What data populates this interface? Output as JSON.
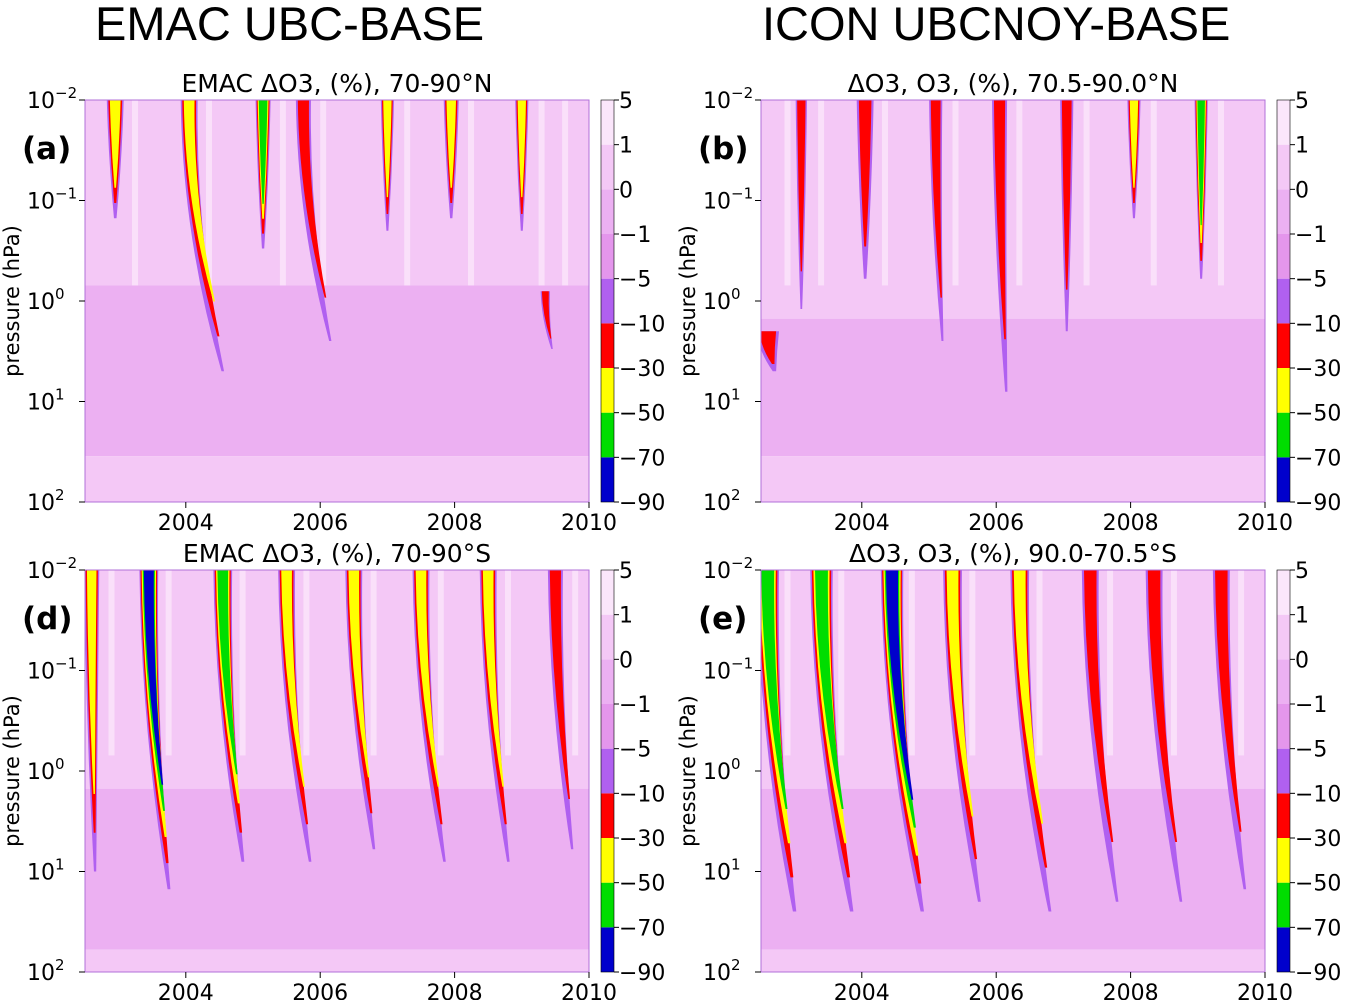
{
  "header": {
    "left_title": "EMAC UBC-BASE",
    "right_title": "ICON UBCNOY-BASE"
  },
  "colors": {
    "levels": [
      "#0000cc",
      "#00dd00",
      "#ffff00",
      "#ff0000",
      "#b060f0",
      "#e496ec",
      "#ecb0f2",
      "#f4c8f6",
      "#fbe6fb"
    ],
    "axis": "#000000",
    "plot_frame": "#b070d8"
  },
  "chart_data": [
    {
      "type": "heatmap",
      "panel_label": "(a)",
      "title": "EMAC ΔO3, (%), 70-90°N",
      "xlabel": "",
      "ylabel": "pressure (hPa)",
      "x_ticks": [
        "2004",
        "2006",
        "2008",
        "2010"
      ],
      "x_tick_values": [
        2004,
        2006,
        2008,
        2010
      ],
      "xlim": [
        2002.5,
        2010
      ],
      "ylim": [
        100,
        0.01
      ],
      "yscale": "log",
      "y_ticks": [
        {
          "base": "10",
          "exp": "−2",
          "value": 0.01
        },
        {
          "base": "10",
          "exp": "−1",
          "value": 0.1
        },
        {
          "base": "10",
          "exp": "0",
          "value": 1
        },
        {
          "base": "10",
          "exp": "1",
          "value": 10
        },
        {
          "base": "10",
          "exp": "2",
          "value": 100
        }
      ],
      "colorbar": {
        "levels": [
          "5",
          "1",
          "0",
          "−1",
          "−5",
          "−10",
          "−30",
          "−50",
          "−70",
          "−90"
        ]
      },
      "background_bands": [
        {
          "p_top": 0.01,
          "p_bottom": 0.7,
          "class": 7
        },
        {
          "p_top": 0.7,
          "p_bottom": 35,
          "class": 6
        },
        {
          "p_top": 35,
          "p_bottom": 100,
          "class": 7
        }
      ],
      "events": [
        {
          "t": 2002.95,
          "p_top": 0.01,
          "p_bottom": 0.15,
          "depth": 2,
          "width": 0.09,
          "slope": 0.0
        },
        {
          "t": 2004.05,
          "p_top": 0.01,
          "p_bottom": 5,
          "depth": 2,
          "width": 0.09,
          "slope": 0.5
        },
        {
          "t": 2005.15,
          "p_top": 0.01,
          "p_bottom": 0.3,
          "depth": 1,
          "width": 0.08,
          "slope": 0.0
        },
        {
          "t": 2005.75,
          "p_top": 0.01,
          "p_bottom": 2.5,
          "depth": 3,
          "width": 0.08,
          "slope": 0.4
        },
        {
          "t": 2007.0,
          "p_top": 0.01,
          "p_bottom": 0.2,
          "depth": 2,
          "width": 0.07,
          "slope": 0.0
        },
        {
          "t": 2007.95,
          "p_top": 0.01,
          "p_bottom": 0.15,
          "depth": 2,
          "width": 0.08,
          "slope": 0.0
        },
        {
          "t": 2009.0,
          "p_top": 0.01,
          "p_bottom": 0.2,
          "depth": 2,
          "width": 0.07,
          "slope": 0.0
        },
        {
          "t": 2009.35,
          "p_top": 0.8,
          "p_bottom": 3,
          "depth": 3,
          "width": 0.05,
          "slope": 0.1
        }
      ]
    },
    {
      "type": "heatmap",
      "panel_label": "(b)",
      "title": "ΔO3, O3, (%), 70.5-90.0°N",
      "xlabel": "",
      "ylabel": "pressure (hPa)",
      "x_ticks": [
        "2004",
        "2006",
        "2008",
        "2010"
      ],
      "x_tick_values": [
        2004,
        2006,
        2008,
        2010
      ],
      "xlim": [
        2002.5,
        2010
      ],
      "ylim": [
        100,
        0.01
      ],
      "yscale": "log",
      "y_ticks": [
        {
          "base": "10",
          "exp": "−2",
          "value": 0.01
        },
        {
          "base": "10",
          "exp": "−1",
          "value": 0.1
        },
        {
          "base": "10",
          "exp": "0",
          "value": 1
        },
        {
          "base": "10",
          "exp": "1",
          "value": 10
        },
        {
          "base": "10",
          "exp": "2",
          "value": 100
        }
      ],
      "colorbar": {
        "levels": [
          "5",
          "1",
          "0",
          "−1",
          "−5",
          "−10",
          "−30",
          "−50",
          "−70",
          "−90"
        ]
      },
      "background_bands": [
        {
          "p_top": 0.01,
          "p_bottom": 1.5,
          "class": 7
        },
        {
          "p_top": 1.5,
          "p_bottom": 35,
          "class": 6
        },
        {
          "p_top": 35,
          "p_bottom": 100,
          "class": 7
        }
      ],
      "events": [
        {
          "t": 2002.6,
          "p_top": 2,
          "p_bottom": 5,
          "depth": 3,
          "width": 0.12,
          "slope": 0.1
        },
        {
          "t": 2003.1,
          "p_top": 0.01,
          "p_bottom": 1.2,
          "depth": 3,
          "width": 0.06,
          "slope": 0.0
        },
        {
          "t": 2004.05,
          "p_top": 0.01,
          "p_bottom": 0.6,
          "depth": 3,
          "width": 0.09,
          "slope": 0.0
        },
        {
          "t": 2005.1,
          "p_top": 0.01,
          "p_bottom": 2.5,
          "depth": 3,
          "width": 0.07,
          "slope": 0.1
        },
        {
          "t": 2006.05,
          "p_top": 0.01,
          "p_bottom": 8,
          "depth": 3,
          "width": 0.08,
          "slope": 0.1
        },
        {
          "t": 2007.05,
          "p_top": 0.01,
          "p_bottom": 2,
          "depth": 3,
          "width": 0.07,
          "slope": 0.0
        },
        {
          "t": 2008.05,
          "p_top": 0.01,
          "p_bottom": 0.15,
          "depth": 2,
          "width": 0.07,
          "slope": 0.0
        },
        {
          "t": 2009.05,
          "p_top": 0.01,
          "p_bottom": 0.6,
          "depth": 1,
          "width": 0.07,
          "slope": 0.0
        }
      ]
    },
    {
      "type": "heatmap",
      "panel_label": "(d)",
      "title": "EMAC ΔO3, (%), 70-90°S",
      "xlabel": "",
      "ylabel": "pressure (hPa)",
      "x_ticks": [
        "2004",
        "2006",
        "2008",
        "2010"
      ],
      "x_tick_values": [
        2004,
        2006,
        2008,
        2010
      ],
      "xlim": [
        2002.5,
        2010
      ],
      "ylim": [
        100,
        0.01
      ],
      "yscale": "log",
      "y_ticks": [
        {
          "base": "10",
          "exp": "−2",
          "value": 0.01
        },
        {
          "base": "10",
          "exp": "−1",
          "value": 0.1
        },
        {
          "base": "10",
          "exp": "0",
          "value": 1
        },
        {
          "base": "10",
          "exp": "1",
          "value": 10
        },
        {
          "base": "10",
          "exp": "2",
          "value": 100
        }
      ],
      "colorbar": {
        "levels": [
          "5",
          "1",
          "0",
          "−1",
          "−5",
          "−10",
          "−30",
          "−50",
          "−70",
          "−90"
        ]
      },
      "background_bands": [
        {
          "p_top": 0.01,
          "p_bottom": 1.5,
          "class": 7
        },
        {
          "p_top": 1.5,
          "p_bottom": 60,
          "class": 6
        },
        {
          "p_top": 60,
          "p_bottom": 100,
          "class": 7
        }
      ],
      "events": [
        {
          "t": 2002.6,
          "p_top": 0.01,
          "p_bottom": 10,
          "depth": 2,
          "width": 0.08,
          "slope": 0.05
        },
        {
          "t": 2003.45,
          "p_top": 0.01,
          "p_bottom": 15,
          "depth": 0,
          "width": 0.1,
          "slope": 0.3
        },
        {
          "t": 2004.55,
          "p_top": 0.01,
          "p_bottom": 8,
          "depth": 1,
          "width": 0.1,
          "slope": 0.3
        },
        {
          "t": 2005.5,
          "p_top": 0.01,
          "p_bottom": 8,
          "depth": 2,
          "width": 0.09,
          "slope": 0.35
        },
        {
          "t": 2006.5,
          "p_top": 0.01,
          "p_bottom": 6,
          "depth": 2,
          "width": 0.09,
          "slope": 0.3
        },
        {
          "t": 2007.5,
          "p_top": 0.01,
          "p_bottom": 8,
          "depth": 2,
          "width": 0.09,
          "slope": 0.35
        },
        {
          "t": 2008.5,
          "p_top": 0.01,
          "p_bottom": 8,
          "depth": 2,
          "width": 0.09,
          "slope": 0.3
        },
        {
          "t": 2009.5,
          "p_top": 0.01,
          "p_bottom": 6,
          "depth": 3,
          "width": 0.08,
          "slope": 0.25
        }
      ]
    },
    {
      "type": "heatmap",
      "panel_label": "(e)",
      "title": "ΔO3, O3, (%), 90.0-70.5°S",
      "xlabel": "",
      "ylabel": "pressure (hPa)",
      "x_ticks": [
        "2004",
        "2006",
        "2008",
        "2010"
      ],
      "x_tick_values": [
        2004,
        2006,
        2008,
        2010
      ],
      "xlim": [
        2002.5,
        2010
      ],
      "ylim": [
        100,
        0.01
      ],
      "yscale": "log",
      "y_ticks": [
        {
          "base": "10",
          "exp": "−2",
          "value": 0.01
        },
        {
          "base": "10",
          "exp": "−1",
          "value": 0.1
        },
        {
          "base": "10",
          "exp": "0",
          "value": 1
        },
        {
          "base": "10",
          "exp": "1",
          "value": 10
        },
        {
          "base": "10",
          "exp": "2",
          "value": 100
        }
      ],
      "colorbar": {
        "levels": [
          "5",
          "1",
          "0",
          "−1",
          "−5",
          "−10",
          "−30",
          "−50",
          "−70",
          "−90"
        ]
      },
      "background_bands": [
        {
          "p_top": 0.01,
          "p_bottom": 1.5,
          "class": 7
        },
        {
          "p_top": 1.5,
          "p_bottom": 60,
          "class": 6
        },
        {
          "p_top": 60,
          "p_bottom": 100,
          "class": 7
        }
      ],
      "events": [
        {
          "t": 2002.6,
          "p_top": 0.01,
          "p_bottom": 25,
          "depth": 1,
          "width": 0.12,
          "slope": 0.4
        },
        {
          "t": 2003.4,
          "p_top": 0.01,
          "p_bottom": 25,
          "depth": 1,
          "width": 0.12,
          "slope": 0.45
        },
        {
          "t": 2004.45,
          "p_top": 0.01,
          "p_bottom": 25,
          "depth": 0,
          "width": 0.12,
          "slope": 0.45
        },
        {
          "t": 2005.35,
          "p_top": 0.01,
          "p_bottom": 20,
          "depth": 2,
          "width": 0.1,
          "slope": 0.4
        },
        {
          "t": 2006.35,
          "p_top": 0.01,
          "p_bottom": 25,
          "depth": 2,
          "width": 0.1,
          "slope": 0.45
        },
        {
          "t": 2007.4,
          "p_top": 0.01,
          "p_bottom": 20,
          "depth": 3,
          "width": 0.09,
          "slope": 0.4
        },
        {
          "t": 2008.35,
          "p_top": 0.01,
          "p_bottom": 20,
          "depth": 3,
          "width": 0.09,
          "slope": 0.4
        },
        {
          "t": 2009.35,
          "p_top": 0.01,
          "p_bottom": 15,
          "depth": 3,
          "width": 0.09,
          "slope": 0.35
        }
      ]
    }
  ]
}
